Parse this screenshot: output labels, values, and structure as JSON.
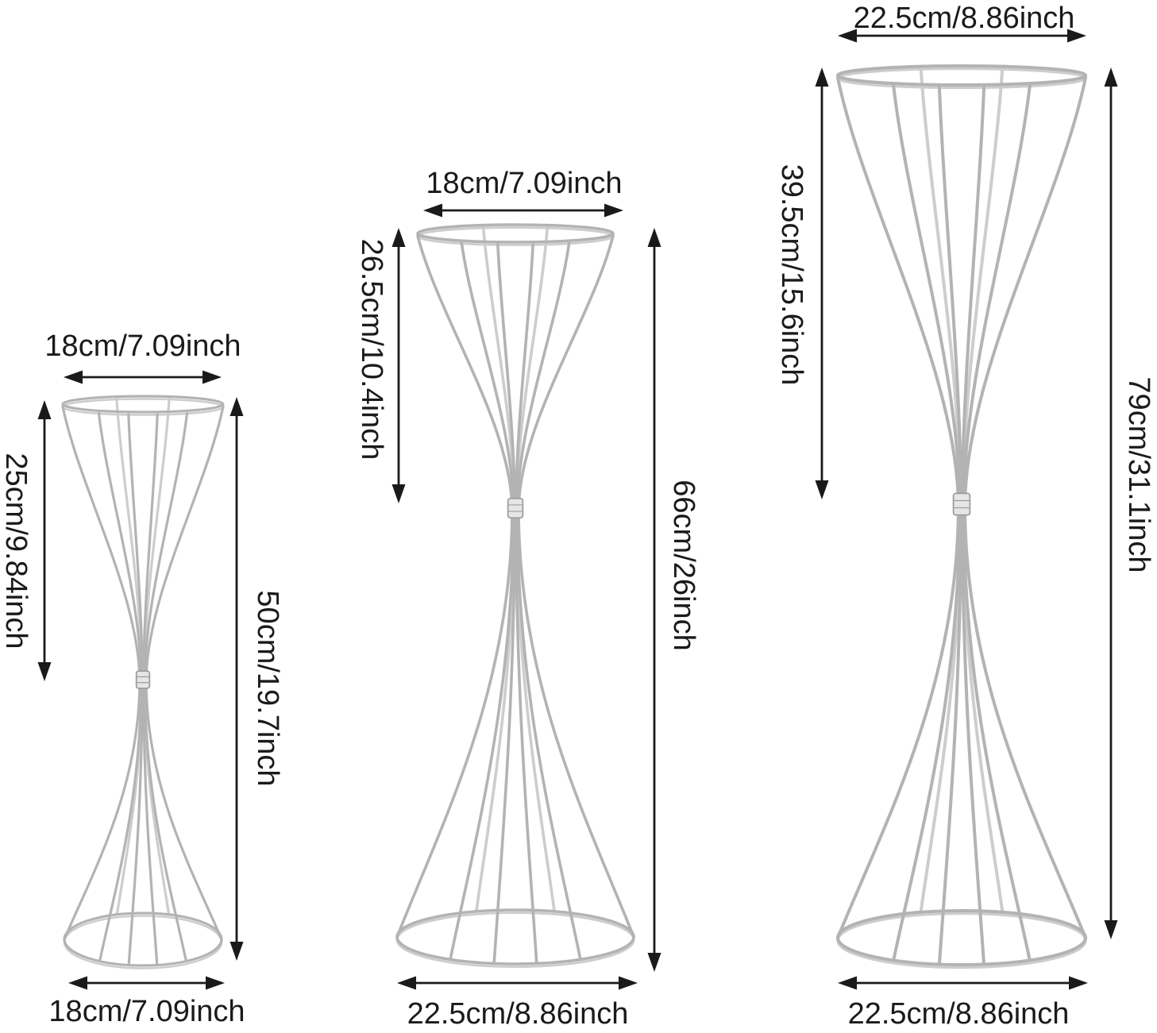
{
  "stands": [
    {
      "top_width": "18cm/7.09inch",
      "upper_height": "25cm/9.84inch",
      "total_height": "50cm/19.7inch",
      "base_width": "18cm/7.09inch"
    },
    {
      "top_width": "18cm/7.09inch",
      "upper_height": "26.5cm/10.4inch",
      "total_height": "66cm/26inch",
      "base_width": "22.5cm/8.86inch"
    },
    {
      "top_width": "22.5cm/8.86inch",
      "upper_height": "39.5cm/15.6inch",
      "total_height": "79cm/31.1inch",
      "base_width": "22.5cm/8.86inch"
    }
  ],
  "colors": {
    "wire": "#b3b3b3",
    "wire_light": "#cdcdcd",
    "collar_fill": "#e6e6e6",
    "collar_stroke": "#9e9e9e",
    "dimension": "#1a1a1a",
    "background": "#ffffff"
  }
}
